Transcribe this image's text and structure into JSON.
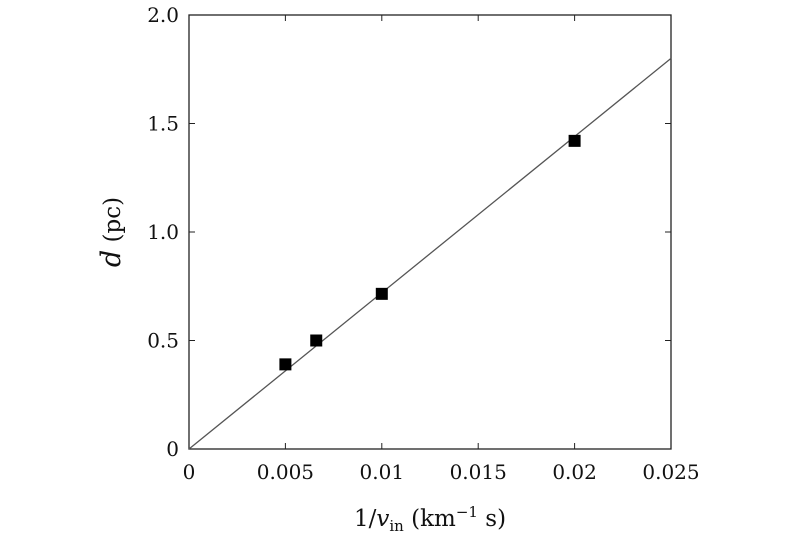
{
  "chart_data": {
    "type": "scatter",
    "xlabel": "1/v_in (km^-1 s)",
    "ylabel": "d (pc)",
    "xlabel_parts": {
      "prefix": "1/",
      "var": "v",
      "sub": "in",
      "unit_open": " (km",
      "exp": "−1",
      "unit_close": " s)"
    },
    "ylabel_parts": {
      "var": "d",
      "unit": " (pc)"
    },
    "xlim": [
      0,
      0.025
    ],
    "ylim": [
      0,
      2.0
    ],
    "x_ticks": [
      {
        "value": 0,
        "label": "0"
      },
      {
        "value": 0.005,
        "label": "0.005"
      },
      {
        "value": 0.01,
        "label": "0.01"
      },
      {
        "value": 0.015,
        "label": "0.015"
      },
      {
        "value": 0.02,
        "label": "0.02"
      },
      {
        "value": 0.025,
        "label": "0.025"
      }
    ],
    "y_ticks": [
      {
        "value": 0,
        "label": "0"
      },
      {
        "value": 0.5,
        "label": "0.5"
      },
      {
        "value": 1.0,
        "label": "1.0"
      },
      {
        "value": 1.5,
        "label": "1.5"
      },
      {
        "value": 2.0,
        "label": "2.0"
      }
    ],
    "series": [
      {
        "marker": "square",
        "color": "#000000",
        "points": [
          {
            "x": 0.005,
            "y": 0.39
          },
          {
            "x": 0.0066,
            "y": 0.5
          },
          {
            "x": 0.01,
            "y": 0.715
          },
          {
            "x": 0.02,
            "y": 1.42
          }
        ]
      }
    ],
    "fit_line": {
      "color": "#555555",
      "points": [
        {
          "x": 0,
          "y": 0
        },
        {
          "x": 0.025,
          "y": 1.8
        }
      ]
    },
    "grid": false,
    "legend": "none"
  }
}
